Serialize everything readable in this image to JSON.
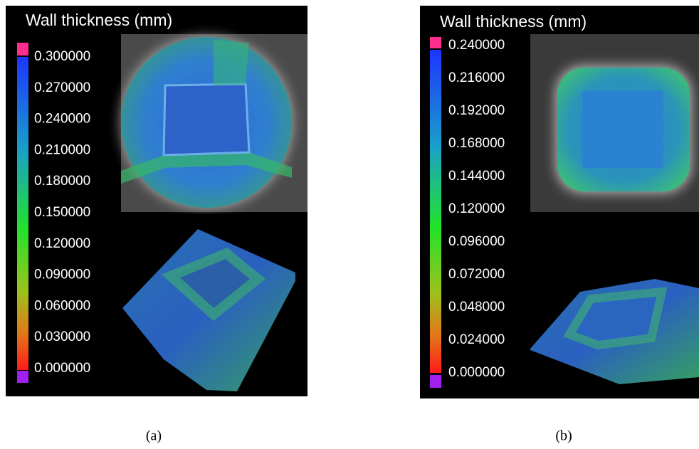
{
  "panels": [
    {
      "title": "Wall thickness (mm)",
      "ticks": [
        "0.300000",
        "0.270000",
        "0.240000",
        "0.210000",
        "0.180000",
        "0.150000",
        "0.120000",
        "0.090000",
        "0.060000",
        "0.030000",
        "0.000000"
      ],
      "caption": "(a)"
    },
    {
      "title": "Wall thickness (mm)",
      "ticks": [
        "0.240000",
        "0.216000",
        "0.192000",
        "0.168000",
        "0.144000",
        "0.120000",
        "0.096000",
        "0.072000",
        "0.048000",
        "0.024000",
        "0.000000"
      ],
      "caption": "(b)"
    }
  ]
}
